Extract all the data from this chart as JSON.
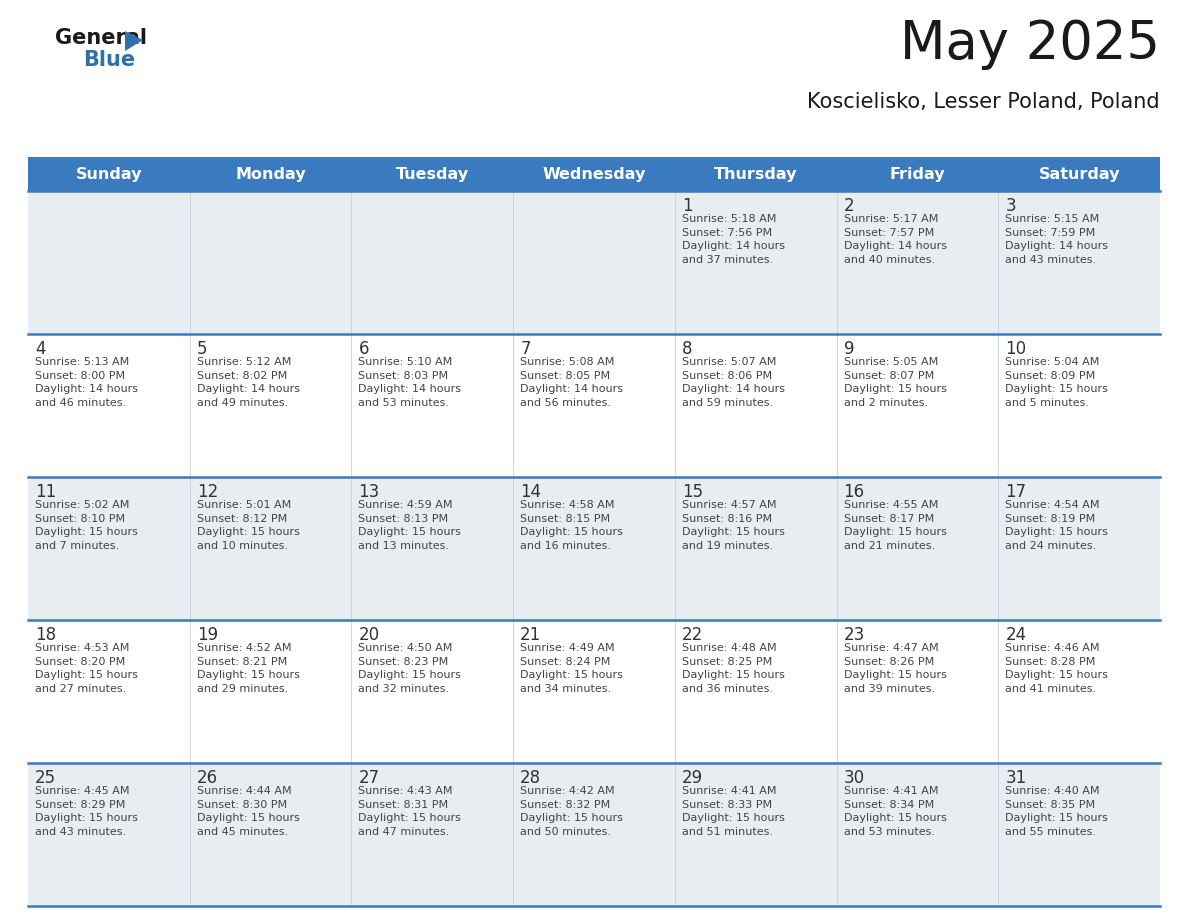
{
  "title": "May 2025",
  "subtitle": "Koscielisko, Lesser Poland, Poland",
  "days_of_week": [
    "Sunday",
    "Monday",
    "Tuesday",
    "Wednesday",
    "Thursday",
    "Friday",
    "Saturday"
  ],
  "header_bg": "#3a7abf",
  "header_text": "#ffffff",
  "cell_bg_gray": "#e8edf2",
  "cell_bg_white": "#ffffff",
  "grid_line_color": "#3a7abf",
  "day_num_color": "#333333",
  "info_text_color": "#444444",
  "title_color": "#1a1a1a",
  "subtitle_color": "#1a1a1a",
  "logo_general_color": "#1a1a1a",
  "logo_blue_color": "#2e6fad",
  "logo_triangle_color": "#2e6fad",
  "calendar": [
    [
      {
        "day": null,
        "info": ""
      },
      {
        "day": null,
        "info": ""
      },
      {
        "day": null,
        "info": ""
      },
      {
        "day": null,
        "info": ""
      },
      {
        "day": 1,
        "info": "Sunrise: 5:18 AM\nSunset: 7:56 PM\nDaylight: 14 hours\nand 37 minutes."
      },
      {
        "day": 2,
        "info": "Sunrise: 5:17 AM\nSunset: 7:57 PM\nDaylight: 14 hours\nand 40 minutes."
      },
      {
        "day": 3,
        "info": "Sunrise: 5:15 AM\nSunset: 7:59 PM\nDaylight: 14 hours\nand 43 minutes."
      }
    ],
    [
      {
        "day": 4,
        "info": "Sunrise: 5:13 AM\nSunset: 8:00 PM\nDaylight: 14 hours\nand 46 minutes."
      },
      {
        "day": 5,
        "info": "Sunrise: 5:12 AM\nSunset: 8:02 PM\nDaylight: 14 hours\nand 49 minutes."
      },
      {
        "day": 6,
        "info": "Sunrise: 5:10 AM\nSunset: 8:03 PM\nDaylight: 14 hours\nand 53 minutes."
      },
      {
        "day": 7,
        "info": "Sunrise: 5:08 AM\nSunset: 8:05 PM\nDaylight: 14 hours\nand 56 minutes."
      },
      {
        "day": 8,
        "info": "Sunrise: 5:07 AM\nSunset: 8:06 PM\nDaylight: 14 hours\nand 59 minutes."
      },
      {
        "day": 9,
        "info": "Sunrise: 5:05 AM\nSunset: 8:07 PM\nDaylight: 15 hours\nand 2 minutes."
      },
      {
        "day": 10,
        "info": "Sunrise: 5:04 AM\nSunset: 8:09 PM\nDaylight: 15 hours\nand 5 minutes."
      }
    ],
    [
      {
        "day": 11,
        "info": "Sunrise: 5:02 AM\nSunset: 8:10 PM\nDaylight: 15 hours\nand 7 minutes."
      },
      {
        "day": 12,
        "info": "Sunrise: 5:01 AM\nSunset: 8:12 PM\nDaylight: 15 hours\nand 10 minutes."
      },
      {
        "day": 13,
        "info": "Sunrise: 4:59 AM\nSunset: 8:13 PM\nDaylight: 15 hours\nand 13 minutes."
      },
      {
        "day": 14,
        "info": "Sunrise: 4:58 AM\nSunset: 8:15 PM\nDaylight: 15 hours\nand 16 minutes."
      },
      {
        "day": 15,
        "info": "Sunrise: 4:57 AM\nSunset: 8:16 PM\nDaylight: 15 hours\nand 19 minutes."
      },
      {
        "day": 16,
        "info": "Sunrise: 4:55 AM\nSunset: 8:17 PM\nDaylight: 15 hours\nand 21 minutes."
      },
      {
        "day": 17,
        "info": "Sunrise: 4:54 AM\nSunset: 8:19 PM\nDaylight: 15 hours\nand 24 minutes."
      }
    ],
    [
      {
        "day": 18,
        "info": "Sunrise: 4:53 AM\nSunset: 8:20 PM\nDaylight: 15 hours\nand 27 minutes."
      },
      {
        "day": 19,
        "info": "Sunrise: 4:52 AM\nSunset: 8:21 PM\nDaylight: 15 hours\nand 29 minutes."
      },
      {
        "day": 20,
        "info": "Sunrise: 4:50 AM\nSunset: 8:23 PM\nDaylight: 15 hours\nand 32 minutes."
      },
      {
        "day": 21,
        "info": "Sunrise: 4:49 AM\nSunset: 8:24 PM\nDaylight: 15 hours\nand 34 minutes."
      },
      {
        "day": 22,
        "info": "Sunrise: 4:48 AM\nSunset: 8:25 PM\nDaylight: 15 hours\nand 36 minutes."
      },
      {
        "day": 23,
        "info": "Sunrise: 4:47 AM\nSunset: 8:26 PM\nDaylight: 15 hours\nand 39 minutes."
      },
      {
        "day": 24,
        "info": "Sunrise: 4:46 AM\nSunset: 8:28 PM\nDaylight: 15 hours\nand 41 minutes."
      }
    ],
    [
      {
        "day": 25,
        "info": "Sunrise: 4:45 AM\nSunset: 8:29 PM\nDaylight: 15 hours\nand 43 minutes."
      },
      {
        "day": 26,
        "info": "Sunrise: 4:44 AM\nSunset: 8:30 PM\nDaylight: 15 hours\nand 45 minutes."
      },
      {
        "day": 27,
        "info": "Sunrise: 4:43 AM\nSunset: 8:31 PM\nDaylight: 15 hours\nand 47 minutes."
      },
      {
        "day": 28,
        "info": "Sunrise: 4:42 AM\nSunset: 8:32 PM\nDaylight: 15 hours\nand 50 minutes."
      },
      {
        "day": 29,
        "info": "Sunrise: 4:41 AM\nSunset: 8:33 PM\nDaylight: 15 hours\nand 51 minutes."
      },
      {
        "day": 30,
        "info": "Sunrise: 4:41 AM\nSunset: 8:34 PM\nDaylight: 15 hours\nand 53 minutes."
      },
      {
        "day": 31,
        "info": "Sunrise: 4:40 AM\nSunset: 8:35 PM\nDaylight: 15 hours\nand 55 minutes."
      }
    ]
  ]
}
